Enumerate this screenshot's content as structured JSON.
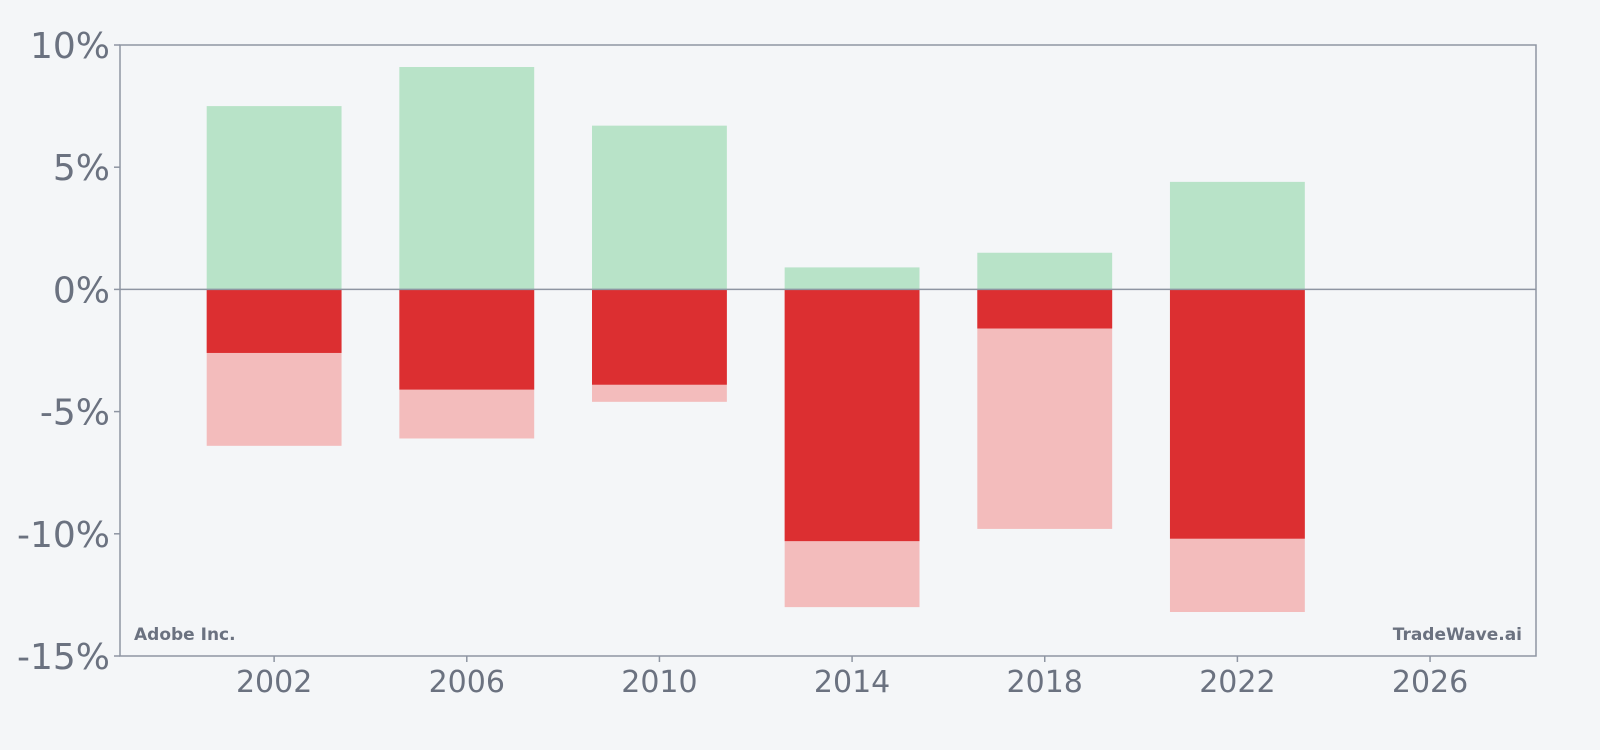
{
  "chart_data": {
    "type": "bar",
    "title": "",
    "xlabel": "",
    "ylabel": "",
    "x_ticks": [
      "2002",
      "2006",
      "2010",
      "2014",
      "2018",
      "2022",
      "2026"
    ],
    "x_range": [
      1998.8,
      2028.2
    ],
    "ylim": [
      -15,
      10
    ],
    "y_ticks": [
      10,
      5,
      0,
      -5,
      -10,
      -15
    ],
    "y_tick_labels": [
      "10%",
      "5%",
      "0%",
      "-5%",
      "-10%",
      "-15%"
    ],
    "bar_width_years": 2.8,
    "grid": false,
    "legend": "none",
    "bars": [
      {
        "year": 2002,
        "positive": 7.5,
        "dark_negative": -2.6,
        "light_negative": -6.4
      },
      {
        "year": 2006,
        "positive": 9.1,
        "dark_negative": -4.1,
        "light_negative": -6.1
      },
      {
        "year": 2010,
        "positive": 6.7,
        "dark_negative": -3.9,
        "light_negative": -4.6
      },
      {
        "year": 2014,
        "positive": 0.9,
        "dark_negative": -10.3,
        "light_negative": -13.0
      },
      {
        "year": 2018,
        "positive": 1.5,
        "dark_negative": -1.6,
        "light_negative": -9.8
      },
      {
        "year": 2022,
        "positive": 4.4,
        "dark_negative": -10.2,
        "light_negative": -13.2
      }
    ],
    "colors": {
      "positive": "#b8e3c8",
      "dark_negative": "#dc2f31",
      "light_negative": "#f3bcbc",
      "axis": "#8e95a2",
      "tick_text": "#6b7280",
      "background": "#f4f6f8"
    },
    "annotations": {
      "left": "Adobe Inc.",
      "right": "TradeWave.ai"
    }
  }
}
